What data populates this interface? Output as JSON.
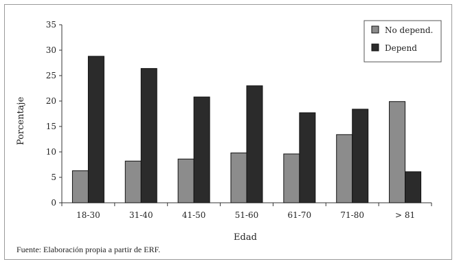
{
  "chart_data": {
    "type": "bar",
    "categories": [
      "18-30",
      "31-40",
      "41-50",
      "51-60",
      "61-70",
      "71-80",
      "> 81"
    ],
    "series": [
      {
        "name": "No depend.",
        "values": [
          6.3,
          8.2,
          8.6,
          9.8,
          9.6,
          13.4,
          19.9
        ],
        "color": "#8c8c8c"
      },
      {
        "name": "Depend",
        "values": [
          28.8,
          26.4,
          20.8,
          23.0,
          17.7,
          18.4,
          6.1
        ],
        "color": "#2b2b2b"
      }
    ],
    "xlabel": "Edad",
    "ylabel": "Porcentaje",
    "ylim": [
      0,
      35
    ],
    "yticks": [
      0,
      5,
      10,
      15,
      20,
      25,
      30,
      35
    ],
    "legend_position": "top-right",
    "grid": false
  },
  "source_note": "Fuente: Elaboración propia a partir de ERF."
}
